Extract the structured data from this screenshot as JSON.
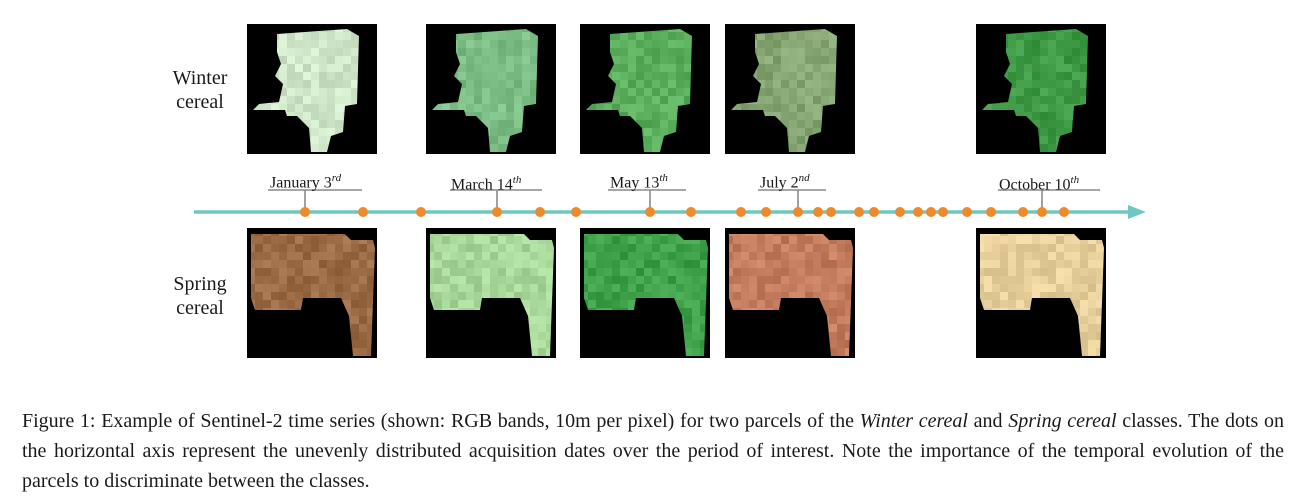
{
  "figure": {
    "rows": [
      {
        "label_line1": "Winter",
        "label_line2": "cereal"
      },
      {
        "label_line1": "Spring",
        "label_line2": "cereal"
      }
    ],
    "dates": [
      {
        "label": "January 3",
        "suffix": "rd"
      },
      {
        "label": "March 14",
        "suffix": "th"
      },
      {
        "label": "May 13",
        "suffix": "th"
      },
      {
        "label": "July 2",
        "suffix": "nd"
      },
      {
        "label": "October 10",
        "suffix": "th"
      }
    ],
    "winter_tile_colors": [
      "#cfe6c9",
      "#7bbd84",
      "#5aae5c",
      "#86a673",
      "#3f9a45"
    ],
    "spring_tile_colors": [
      "#9a6b45",
      "#a8d79a",
      "#3fa04a",
      "#c47c5e",
      "#e6cf9b"
    ],
    "timeline_color": "#6fc7c3",
    "dot_color": "#ee8a2a",
    "acquisition_dot_count": 28
  },
  "caption": {
    "prefix": "Figure 1: Example of Sentinel-2 time series (shown: RGB bands, 10m per pixel) for two parcels of the ",
    "italic1": "Winter cereal",
    "mid": " and ",
    "italic2": "Spring cereal",
    "suffix": " classes. The dots on the horizontal axis represent the unevenly distributed acquisition dates over the period of interest. Note the importance of the temporal evolution of the parcels to discriminate between the classes."
  }
}
